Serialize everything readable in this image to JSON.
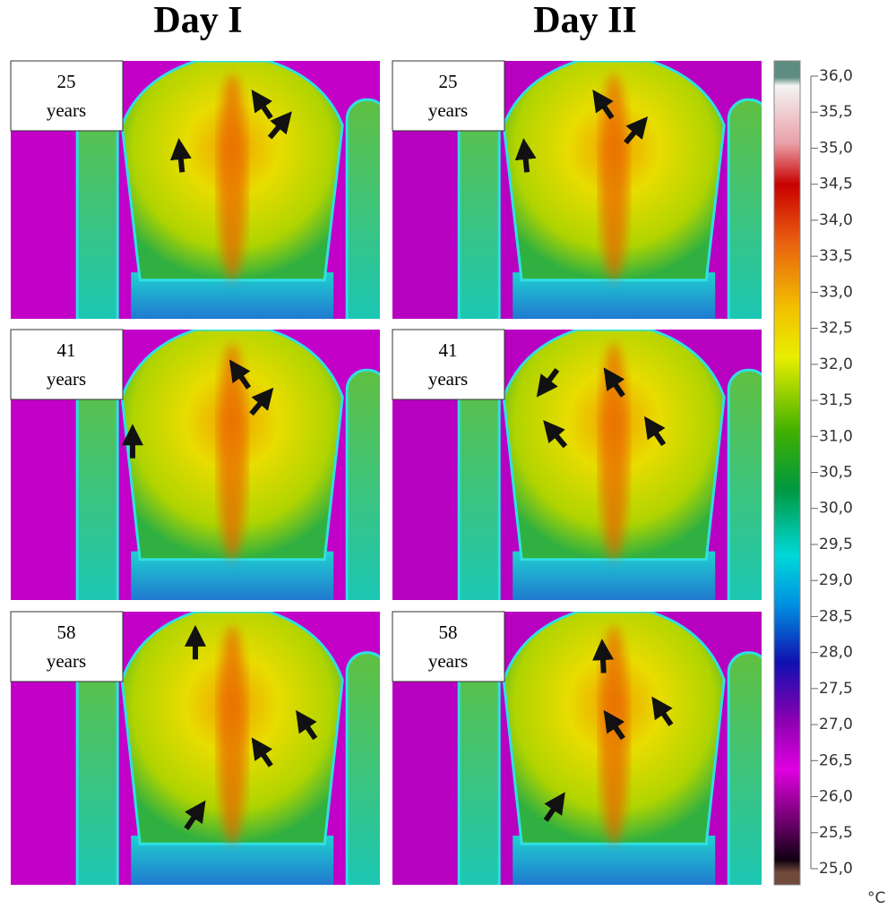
{
  "columns": [
    {
      "title": "Day I",
      "panels": [
        {
          "age": "25",
          "unit": "years"
        },
        {
          "age": "41",
          "unit": "years"
        },
        {
          "age": "58",
          "unit": "years"
        }
      ]
    },
    {
      "title": "Day II",
      "panels": [
        {
          "age": "25",
          "unit": "years"
        },
        {
          "age": "41",
          "unit": "years"
        },
        {
          "age": "58",
          "unit": "years"
        }
      ]
    }
  ],
  "colorbar": {
    "unit": "°C",
    "ticks": [
      {
        "value": 36,
        "label": "36,0"
      },
      {
        "value": 35.5,
        "label": "35,5"
      },
      {
        "value": 35,
        "label": "35,0"
      },
      {
        "value": 34.5,
        "label": "34,5"
      },
      {
        "value": 34,
        "label": "34,0"
      },
      {
        "value": 33.5,
        "label": "33,5"
      },
      {
        "value": 33,
        "label": "33,0"
      },
      {
        "value": 32.5,
        "label": "32,5"
      },
      {
        "value": 32,
        "label": "32,0"
      },
      {
        "value": 31.5,
        "label": "31,5"
      },
      {
        "value": 31,
        "label": "31,0"
      },
      {
        "value": 30.5,
        "label": "30,5"
      },
      {
        "value": 30,
        "label": "30,0"
      },
      {
        "value": 29.5,
        "label": "29,5"
      },
      {
        "value": 29,
        "label": "29,0"
      },
      {
        "value": 28.5,
        "label": "28,5"
      },
      {
        "value": 28,
        "label": "28,0"
      },
      {
        "value": 27.5,
        "label": "27,5"
      },
      {
        "value": 27,
        "label": "27,0"
      },
      {
        "value": 26.5,
        "label": "26,5"
      },
      {
        "value": 26,
        "label": "26,0"
      },
      {
        "value": 25.5,
        "label": "25,5"
      },
      {
        "value": 25,
        "label": "25,0"
      }
    ]
  }
}
